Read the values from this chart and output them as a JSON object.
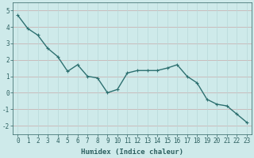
{
  "xlabel": "Humidex (Indice chaleur)",
  "x_values": [
    0,
    1,
    2,
    3,
    4,
    5,
    6,
    7,
    8,
    9,
    10,
    11,
    12,
    13,
    14,
    15,
    16,
    17,
    18,
    19,
    20,
    21,
    22,
    23
  ],
  "y_values": [
    4.7,
    3.9,
    3.5,
    2.7,
    2.2,
    1.3,
    1.7,
    1.0,
    0.9,
    0.0,
    0.2,
    1.2,
    1.35,
    1.35,
    1.35,
    1.5,
    1.7,
    1.0,
    0.6,
    -0.4,
    -0.7,
    -0.8,
    -1.3,
    -1.8
  ],
  "ylim": [
    -2.5,
    5.5
  ],
  "xlim": [
    -0.5,
    23.5
  ],
  "yticks": [
    -2,
    -1,
    0,
    1,
    2,
    3,
    4,
    5
  ],
  "xticks": [
    0,
    1,
    2,
    3,
    4,
    5,
    6,
    7,
    8,
    9,
    10,
    11,
    12,
    13,
    14,
    15,
    16,
    17,
    18,
    19,
    20,
    21,
    22,
    23
  ],
  "line_color": "#2d7070",
  "marker_color": "#2d7070",
  "bg_color": "#ceeaea",
  "grid_color_h": "#c8a8a8",
  "grid_color_v": "#b8d8d8",
  "axes_bg": "#ceeaea",
  "tick_color": "#2d6060",
  "label_fontsize": 6.5,
  "tick_fontsize": 5.5,
  "linewidth": 1.0,
  "markersize": 3.5
}
